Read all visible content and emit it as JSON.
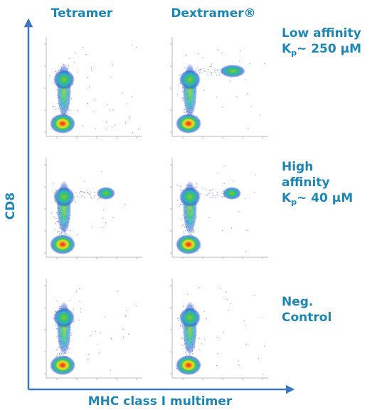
{
  "columns": [
    "Tetramer",
    "Dextramer®"
  ],
  "rows": [
    {
      "lines": [
        "Low affinity"
      ],
      "kd": {
        "main": "K",
        "sub": "p",
        "rest": "~ 250 µM"
      }
    },
    {
      "lines": [
        "High",
        "affinity"
      ],
      "kd": {
        "main": "K",
        "sub": "p",
        "rest": "~ 40 µM"
      }
    },
    {
      "lines": [
        "Neg.",
        "Control"
      ]
    }
  ],
  "y_axis_label": "CD8",
  "x_axis_label": "MHC class I multimer"
}
